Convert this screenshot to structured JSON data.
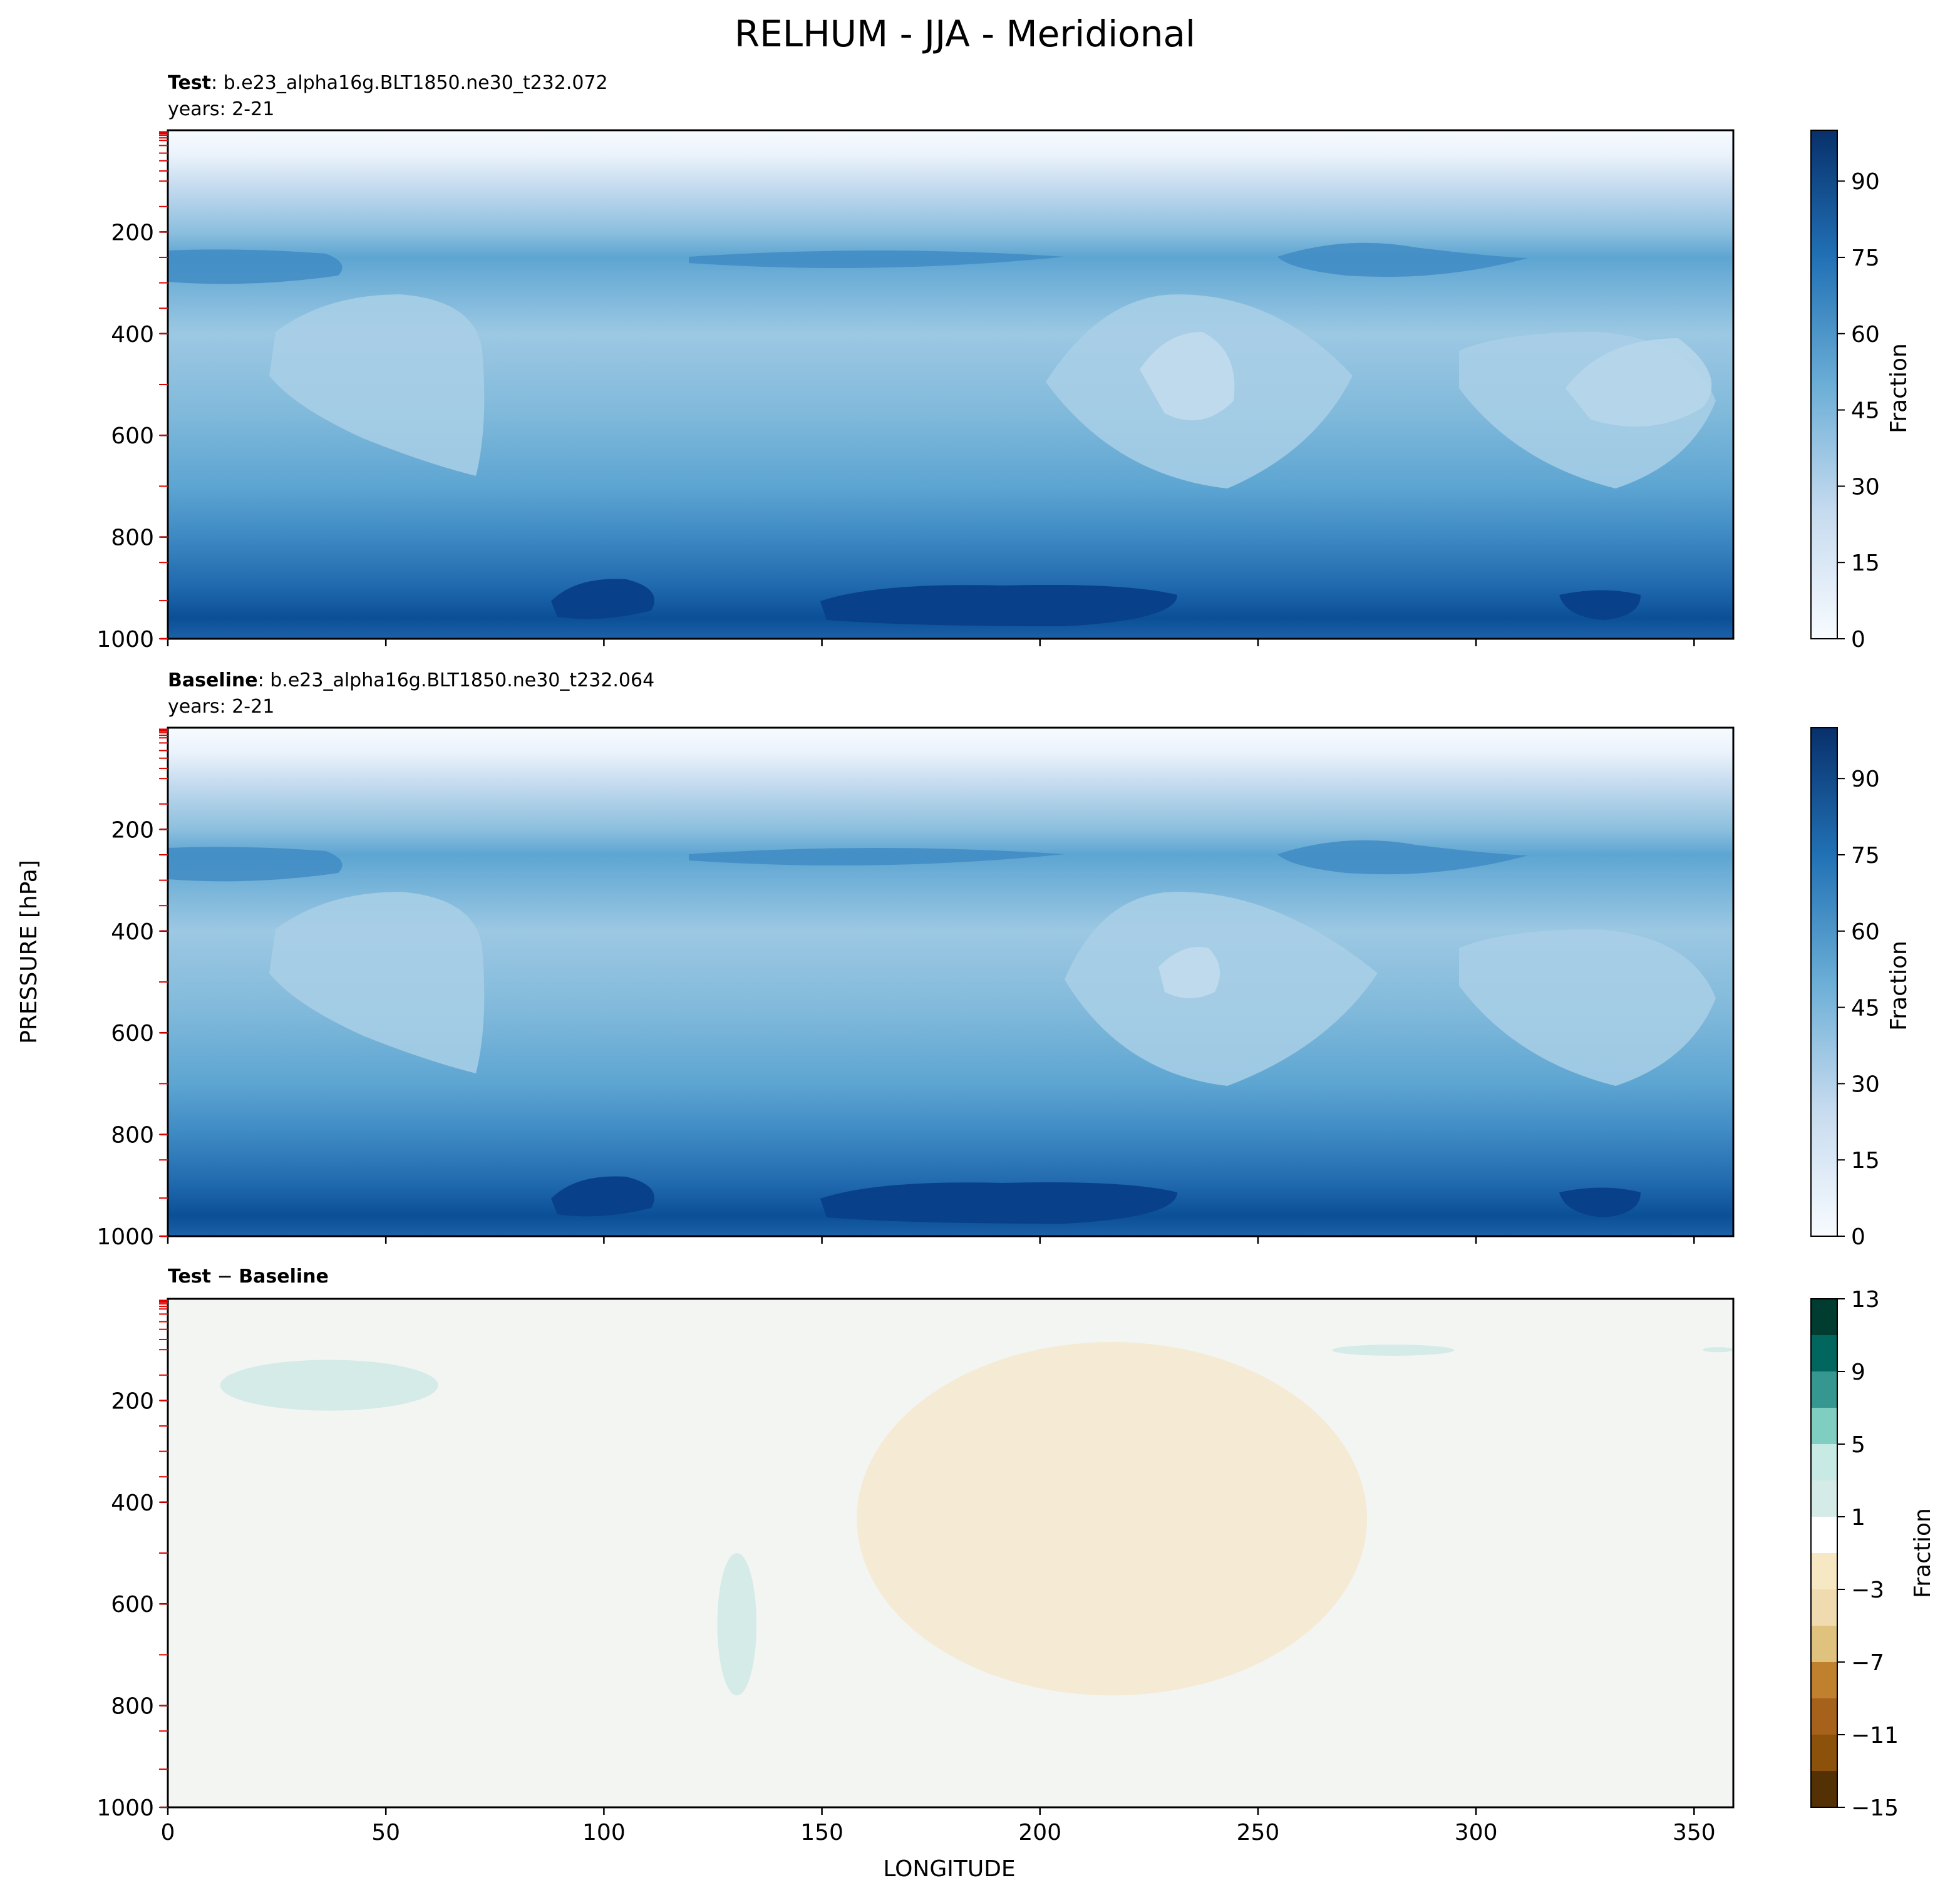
{
  "figure": {
    "title": "RELHUM - JJA - Meridional",
    "ylabel": "PRESSURE [hPa]",
    "xlabel": "LONGITUDE"
  },
  "chart_data": [
    {
      "type": "heatmap",
      "panel": "test",
      "label_bold": "Test",
      "label_rest": ": b.e23_alpha16g.BLT1850.ne30_t232.072",
      "years": "years: 2-21",
      "xlim": [
        0,
        359
      ],
      "ylim": [
        1000,
        0
      ],
      "y_inverted": true,
      "x_ticks": [
        0,
        50,
        100,
        150,
        200,
        250,
        300,
        350
      ],
      "x_tick_labels_shown": false,
      "y_ticks": [
        200,
        400,
        600,
        800,
        1000
      ],
      "levels_note": "filled contours, 0-100 in steps of 5",
      "colorbar": {
        "label": "Fraction",
        "ticks": [
          "0",
          "15",
          "30",
          "45",
          "60",
          "75",
          "90"
        ],
        "min": 0,
        "max": 100,
        "colormap": "Blues"
      },
      "profile": {
        "pressure": [
          0,
          50,
          90,
          150,
          200,
          250,
          300,
          400,
          500,
          600,
          700,
          800,
          850,
          900,
          950,
          1000
        ],
        "relhum": [
          0,
          10,
          25,
          38,
          52,
          62,
          55,
          42,
          42,
          46,
          55,
          65,
          72,
          80,
          86,
          85
        ]
      }
    },
    {
      "type": "heatmap",
      "panel": "baseline",
      "label_bold": "Baseline",
      "label_rest": ": b.e23_alpha16g.BLT1850.ne30_t232.064",
      "years": "years: 2-21",
      "xlim": [
        0,
        359
      ],
      "ylim": [
        1000,
        0
      ],
      "y_inverted": true,
      "x_ticks": [
        0,
        50,
        100,
        150,
        200,
        250,
        300,
        350
      ],
      "x_tick_labels_shown": false,
      "y_ticks": [
        200,
        400,
        600,
        800,
        1000
      ],
      "levels_note": "filled contours, 0-100 in steps of 5",
      "colorbar": {
        "label": "Fraction",
        "ticks": [
          "0",
          "15",
          "30",
          "45",
          "60",
          "75",
          "90"
        ],
        "min": 0,
        "max": 100,
        "colormap": "Blues"
      },
      "profile": {
        "pressure": [
          0,
          50,
          90,
          150,
          200,
          250,
          300,
          400,
          500,
          600,
          700,
          800,
          850,
          900,
          950,
          1000
        ],
        "relhum": [
          0,
          10,
          25,
          38,
          52,
          62,
          55,
          42,
          42,
          46,
          55,
          65,
          72,
          80,
          86,
          85
        ]
      }
    },
    {
      "type": "heatmap",
      "panel": "difference",
      "label_bold_a": "Test",
      "label_sep": " − ",
      "label_bold_b": "Baseline",
      "xlim": [
        0,
        359
      ],
      "ylim": [
        1000,
        0
      ],
      "y_inverted": true,
      "x_ticks": [
        0,
        50,
        100,
        150,
        200,
        250,
        300,
        350
      ],
      "x_tick_labels": [
        "0",
        "50",
        "100",
        "150",
        "200",
        "250",
        "300",
        "350"
      ],
      "y_ticks": [
        200,
        400,
        600,
        800,
        1000
      ],
      "background_value": 0,
      "colorbar": {
        "label": "Fraction",
        "ticks": [
          "13",
          "9",
          "5",
          "1",
          "−3",
          "−7",
          "−11",
          "−15"
        ],
        "min": -15,
        "max": 13,
        "colormap": "BrBG"
      },
      "regions": [
        {
          "sign": "positive",
          "value": 1.5,
          "lon": [
            12,
            62
          ],
          "pressure": [
            120,
            220
          ]
        },
        {
          "sign": "positive",
          "value": 1.5,
          "lon": [
            126,
            135
          ],
          "pressure": [
            500,
            780
          ]
        },
        {
          "sign": "positive",
          "value": 1.5,
          "lon": [
            267,
            295
          ],
          "pressure": [
            90,
            112
          ]
        },
        {
          "sign": "positive",
          "value": 1.5,
          "lon": [
            352,
            359
          ],
          "pressure": [
            95,
            105
          ]
        },
        {
          "sign": "negative",
          "value": -1.5,
          "lon": [
            158,
            275
          ],
          "pressure": [
            85,
            780
          ]
        }
      ]
    }
  ],
  "colors": {
    "diff_background": "#f3f5f3",
    "diff_positive": "#d5ebe7",
    "diff_negative": "#f5ead4",
    "model_level_ticks": "#e00000"
  }
}
